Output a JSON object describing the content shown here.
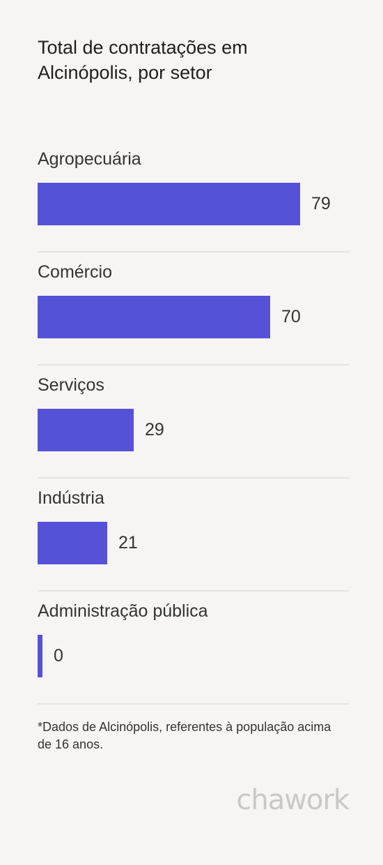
{
  "chart_data": {
    "type": "bar",
    "orientation": "horizontal",
    "title": "Total de contratações em Alcinópolis, por setor",
    "categories": [
      "Agropecuária",
      "Comércio",
      "Serviços",
      "Indústria",
      "Administração pública"
    ],
    "values": [
      79,
      70,
      29,
      21,
      0
    ],
    "bar_color": "#5652d8",
    "xlim": [
      0,
      100
    ],
    "grid": false
  },
  "footnote": "*Dados de Alcinópolis, referentes à população acima de 16 anos.",
  "logo": "chawork"
}
